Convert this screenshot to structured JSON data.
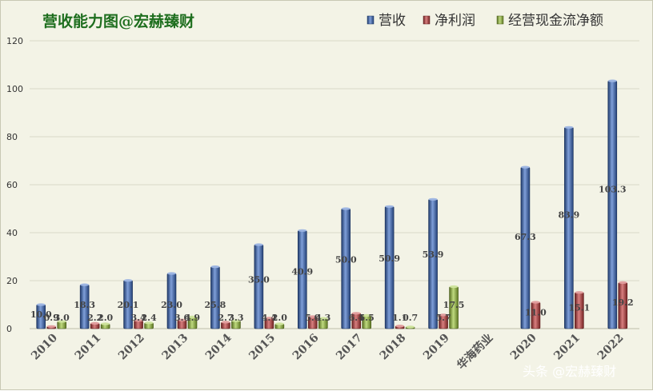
{
  "chart_data": {
    "type": "bar",
    "title": "营收能力图@宏赫臻财",
    "categories": [
      "2010",
      "2011",
      "2012",
      "2013",
      "2014",
      "2015",
      "2016",
      "2017",
      "2018",
      "2019",
      "华海药业",
      "2020",
      "2021",
      "2022"
    ],
    "ylim": [
      0,
      120
    ],
    "yticks": [
      0,
      20,
      40,
      60,
      80,
      100,
      120
    ],
    "grid": true,
    "legend_position": "top-right",
    "series": [
      {
        "name": "营收",
        "color": "#3a6bc4",
        "values": [
          10.0,
          18.3,
          20.1,
          23.0,
          25.8,
          35.0,
          40.9,
          50.0,
          50.9,
          53.9,
          null,
          67.3,
          83.9,
          103.3
        ],
        "labels": [
          "10.0",
          "18.3",
          "20.1",
          "23.0",
          "25.8",
          "35.0",
          "40.9",
          "50.0",
          "50.9",
          "53.9",
          "",
          "67.3",
          "83.9",
          "103.3"
        ]
      },
      {
        "name": "净利润",
        "color": "#c33a3a",
        "values": [
          0.9,
          2.2,
          3.4,
          3.6,
          2.7,
          4.4,
          5.0,
          6.4,
          1.1,
          5.7,
          null,
          11.0,
          15.1,
          19.2
        ],
        "labels": [
          "0.9",
          "2.2",
          "3.4",
          "3.6",
          "2.7",
          "4.4",
          "5.0",
          "6.4",
          "1.1",
          "5.7",
          "",
          "11.0",
          "15.1",
          "19.2"
        ]
      },
      {
        "name": "经营现金流净额",
        "color": "#9cc63a",
        "values": [
          3.0,
          2.0,
          2.4,
          4.9,
          3.3,
          2.0,
          4.3,
          5.5,
          0.7,
          17.5,
          null,
          null,
          null,
          null
        ],
        "labels": [
          "3.0",
          "2.0",
          "2.4",
          "4.9",
          "3.3",
          "2.0",
          "4.3",
          "5.5",
          "0.7",
          "17.5",
          "",
          "",
          "",
          ""
        ]
      }
    ]
  },
  "watermark": "头条 @宏赫臻财"
}
